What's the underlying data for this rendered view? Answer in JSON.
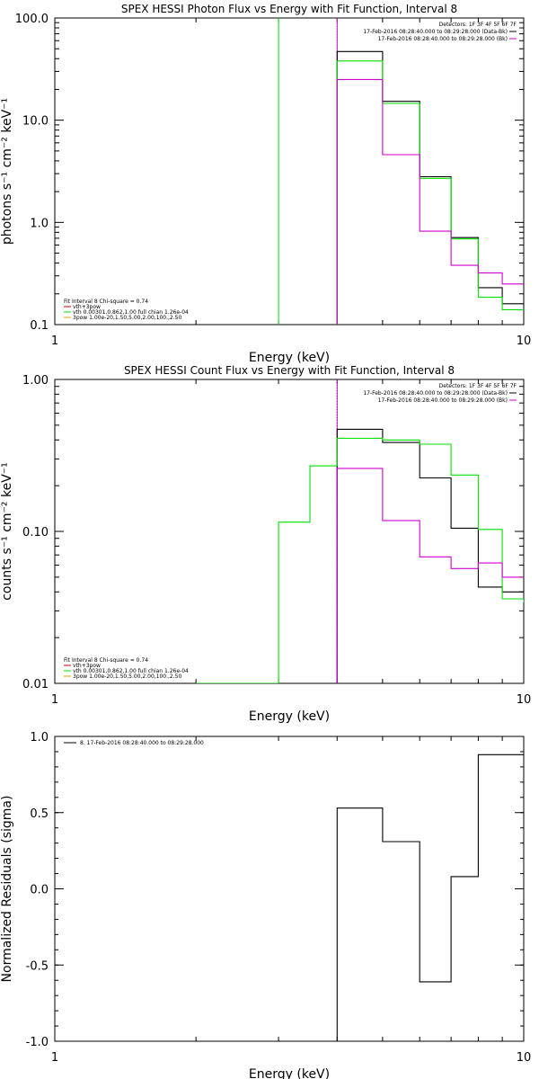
{
  "chart_data": [
    {
      "type": "line",
      "title": "SPEX HESSI Photon Flux vs Energy with Fit Function, Interval 8",
      "xlabel": "Energy (keV)",
      "ylabel": "photons s⁻¹ cm⁻² keV⁻¹",
      "xscale": "log",
      "yscale": "log",
      "xlim": [
        1,
        10
      ],
      "ylim": [
        0.1,
        100
      ],
      "x_ticks": [
        {
          "value": 1,
          "label": "1"
        },
        {
          "value": 10,
          "label": "10"
        }
      ],
      "y_ticks": [
        {
          "value": 0.1,
          "label": "0.1"
        },
        {
          "value": 1,
          "label": "1.0"
        },
        {
          "value": 10,
          "label": "10.0"
        },
        {
          "value": 100,
          "label": "100.0"
        }
      ],
      "vlines": [
        {
          "x": 3,
          "color": "#00e000",
          "style": "solid"
        },
        {
          "x": 4,
          "color": "#00e000",
          "style": "dotted"
        },
        {
          "x": 4,
          "color": "#d000d0",
          "style": "solid"
        }
      ],
      "bin_edges": [
        4,
        5,
        6,
        7,
        8,
        9,
        10
      ],
      "series": [
        {
          "color": "#000000",
          "values": [
            47,
            15.3,
            2.8,
            0.71,
            0.23,
            0.16
          ]
        },
        {
          "color": "#00e000",
          "values": [
            38,
            14.6,
            2.7,
            0.69,
            0.185,
            0.14
          ]
        },
        {
          "color": "#d000d0",
          "values": [
            25,
            4.6,
            0.82,
            0.38,
            0.32,
            0.25
          ]
        }
      ],
      "legend_top": {
        "position": "top-right",
        "header": "Detectors: 1F 3F 4F 5F 6F 7F",
        "entries": [
          {
            "text": "17-Feb-2016 08:28:40.000 to 08:29:28.000 (Data-Bk)",
            "color": "#000000"
          },
          {
            "text": "17-Feb-2016 08:28:40.000 to 08:29:28.000 (Bk)",
            "color": "#d000d0"
          }
        ]
      },
      "legend_bottom": {
        "position": "bottom-left",
        "header": "Fit Interval 8   Chi-square = 0.74",
        "entries": [
          {
            "text": "vth+3pow",
            "color": "#d00000"
          },
          {
            "text": "vth 0.00301,0.862,1.00   full chian 1.26e-04",
            "color": "#00e000"
          },
          {
            "text": "3pow 1.00e-20,1.50,5.00,2.00,100.,2.50",
            "color": "#e0a000"
          }
        ]
      }
    },
    {
      "type": "line",
      "title": "SPEX HESSI Count Flux vs Energy with Fit Function, Interval 8",
      "xlabel": "Energy (keV)",
      "ylabel": "counts s⁻¹ cm⁻² keV⁻¹",
      "xscale": "log",
      "yscale": "log",
      "xlim": [
        1,
        10
      ],
      "ylim": [
        0.01,
        1
      ],
      "x_ticks": [
        {
          "value": 1,
          "label": "1"
        },
        {
          "value": 10,
          "label": "10"
        }
      ],
      "y_ticks": [
        {
          "value": 0.01,
          "label": "0.01"
        },
        {
          "value": 0.1,
          "label": "0.10"
        },
        {
          "value": 1,
          "label": "1.00"
        }
      ],
      "vlines": [
        {
          "x": 4,
          "color": "#000000",
          "style": "dotted"
        },
        {
          "x": 4,
          "color": "#d000d0",
          "style": "solid"
        }
      ],
      "series": [
        {
          "color": "#000000",
          "bin_edges": [
            4,
            5,
            6,
            7,
            8,
            9,
            10
          ],
          "values": [
            0.47,
            0.385,
            0.225,
            0.105,
            0.043,
            0.04
          ]
        },
        {
          "color": "#00e000",
          "bin_edges": [
            2,
            3,
            3.5,
            4,
            5,
            6,
            7,
            8,
            9,
            10
          ],
          "values": [
            0.01,
            0.115,
            0.27,
            0.41,
            0.4,
            0.375,
            0.235,
            0.103,
            0.036,
            0.034
          ]
        },
        {
          "color": "#d000d0",
          "bin_edges": [
            4,
            5,
            6,
            7,
            8,
            9,
            10
          ],
          "values": [
            0.26,
            0.118,
            0.068,
            0.057,
            0.062,
            0.05
          ]
        }
      ],
      "legend_top": {
        "position": "top-right",
        "header": "Detectors: 1F 3F 4F 5F 6F 7F",
        "entries": [
          {
            "text": "17-Feb-2016 08:28:40.000 to 08:29:28.000 (Data-Bk)",
            "color": "#000000"
          },
          {
            "text": "17-Feb-2016 08:28:40.000 to 08:29:28.000 (Bk)",
            "color": "#d000d0"
          }
        ]
      },
      "legend_bottom": {
        "position": "bottom-left",
        "header": "Fit Interval 8   Chi-square = 0.74",
        "entries": [
          {
            "text": "vth+3pow",
            "color": "#d00000"
          },
          {
            "text": "vth 0.00301,0.862,1.00   full chian 1.26e-04",
            "color": "#00e000"
          },
          {
            "text": "3pow 1.00e-20,1.50,5.00,2.00,100.,2.50",
            "color": "#e0a000"
          }
        ]
      }
    },
    {
      "type": "line",
      "title": "",
      "xlabel": "Energy (keV)",
      "ylabel": "Normalized Residuals (sigma)",
      "xscale": "log",
      "yscale": "linear",
      "xlim": [
        1,
        10
      ],
      "ylim": [
        -1,
        1
      ],
      "x_ticks": [
        {
          "value": 1,
          "label": "1"
        },
        {
          "value": 10,
          "label": "10"
        }
      ],
      "y_ticks": [
        {
          "value": -1,
          "label": "-1.0"
        },
        {
          "value": -0.5,
          "label": "-0.5"
        },
        {
          "value": 0,
          "label": "0.0"
        },
        {
          "value": 0.5,
          "label": "0.5"
        },
        {
          "value": 1,
          "label": "1.0"
        }
      ],
      "bin_edges": [
        4,
        5,
        6,
        7,
        8,
        9,
        10
      ],
      "series": [
        {
          "color": "#000000",
          "values": [
            0.53,
            0.31,
            -0.61,
            0.08,
            0.88,
            0.88
          ]
        }
      ],
      "legend_top": {
        "position": "top-left",
        "header": "",
        "entries": [
          {
            "text": "8. 17-Feb-2016 08:28:40.000 to 08:29:28.000",
            "color": "#000000"
          }
        ]
      }
    }
  ]
}
